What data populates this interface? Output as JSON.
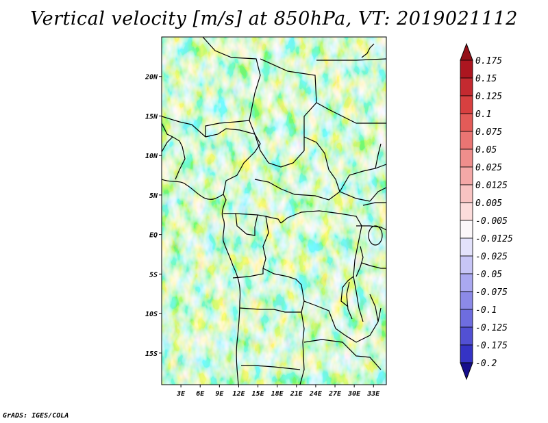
{
  "title": "Vertical velocity [m/s] at 850hPa, VT: 2019021112",
  "credit": "GrADS: IGES/COLA",
  "map": {
    "lat_range": [
      -19,
      25
    ],
    "lon_range": [
      0,
      35
    ],
    "lat_ticks": [
      {
        "value": 20,
        "label": "20N"
      },
      {
        "value": 15,
        "label": "15N"
      },
      {
        "value": 10,
        "label": "10N"
      },
      {
        "value": 5,
        "label": "5N"
      },
      {
        "value": 0,
        "label": "EQ"
      },
      {
        "value": -5,
        "label": "5S"
      },
      {
        "value": -10,
        "label": "10S"
      },
      {
        "value": -15,
        "label": "15S"
      }
    ],
    "lon_ticks": [
      {
        "value": 3,
        "label": "3E"
      },
      {
        "value": 6,
        "label": "6E"
      },
      {
        "value": 9,
        "label": "9E"
      },
      {
        "value": 12,
        "label": "12E"
      },
      {
        "value": 15,
        "label": "15E"
      },
      {
        "value": 18,
        "label": "18E"
      },
      {
        "value": 21,
        "label": "21E"
      },
      {
        "value": 24,
        "label": "24E"
      },
      {
        "value": 27,
        "label": "27E"
      },
      {
        "value": 30,
        "label": "30E"
      },
      {
        "value": 33,
        "label": "33E"
      }
    ]
  },
  "colorbar": {
    "levels": [
      {
        "label": "0.175",
        "color": "#ac1620"
      },
      {
        "label": "0.15",
        "color": "#c42a30"
      },
      {
        "label": "0.125",
        "color": "#d84040"
      },
      {
        "label": "0.1",
        "color": "#e35b58"
      },
      {
        "label": "0.075",
        "color": "#ea7573"
      },
      {
        "label": "0.05",
        "color": "#ef8e8c"
      },
      {
        "label": "0.025",
        "color": "#f4a8a7"
      },
      {
        "label": "0.0125",
        "color": "#f8c3c2"
      },
      {
        "label": "0.005",
        "color": "#fcdcdb"
      },
      {
        "label": "-0.005",
        "color": "#fbf7f9"
      },
      {
        "label": "-0.0125",
        "color": "#e3e2fb"
      },
      {
        "label": "-0.025",
        "color": "#c7c5f6"
      },
      {
        "label": "-0.05",
        "color": "#aaa8f0"
      },
      {
        "label": "-0.075",
        "color": "#8c8ae8"
      },
      {
        "label": "-0.1",
        "color": "#6e6ddf"
      },
      {
        "label": "-0.125",
        "color": "#5250d3"
      },
      {
        "label": "-0.175",
        "color": "#3533c5"
      },
      {
        "label": "-0.2",
        "color": "#1e1ca8"
      }
    ],
    "top_arrow_color": "#941018",
    "bottom_arrow_color": "#160e8c"
  }
}
